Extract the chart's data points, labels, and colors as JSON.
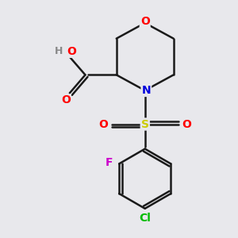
{
  "bg_color": "#e8e8ec",
  "bond_color": "#1a1a1a",
  "atom_colors": {
    "O": "#ff0000",
    "N": "#0000dd",
    "S": "#cccc00",
    "F": "#cc00cc",
    "Cl": "#00bb00",
    "H": "#888888",
    "C": "#1a1a1a"
  },
  "figsize": [
    3.0,
    3.0
  ],
  "dpi": 100
}
